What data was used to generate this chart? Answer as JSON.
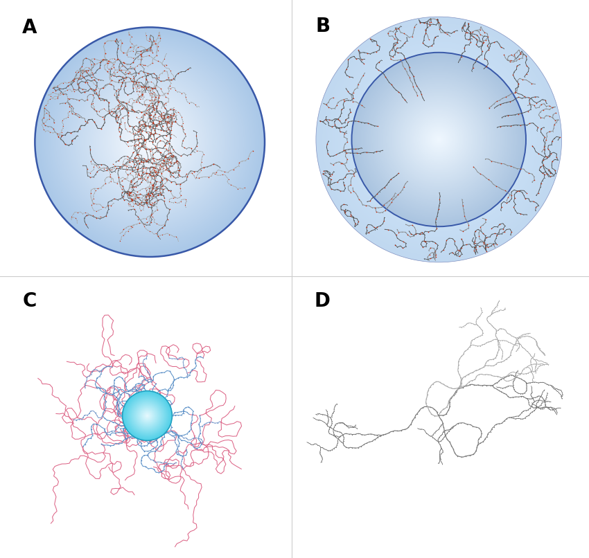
{
  "panel_A_label": "A",
  "panel_B_label": "B",
  "panel_C_label": "C",
  "panel_D_label": "D",
  "label_fontsize": 20,
  "background_color": "#ffffff",
  "A_sphere_inner": "#f0f8ff",
  "A_sphere_outer": "#b0c8e8",
  "A_edge_color": "#3858a8",
  "A_poly_dark": "#555555",
  "A_poly_gray": "#999999",
  "A_poly_red": "#cc2200",
  "B_outer_inner": "#cce0f8",
  "B_outer_outer": "#b8d4f0",
  "B_inner_inner": "#ddeeff",
  "B_inner_outer": "#a8c8e8",
  "B_edge_color": "#3858a8",
  "B_poly_dark": "#555555",
  "B_poly_gray": "#888888",
  "B_poly_red": "#cc2200",
  "C_sphere_inner": "#e8faff",
  "C_sphere_outer": "#40c8e0",
  "C_edge_color": "#20a0c0",
  "C_inner_poly": "#6699cc",
  "C_outer_poly": "#dd6688",
  "D_poly_dark": "#888888",
  "D_poly_light": "#bbbbbb",
  "D_poly_red": "#cc3333"
}
